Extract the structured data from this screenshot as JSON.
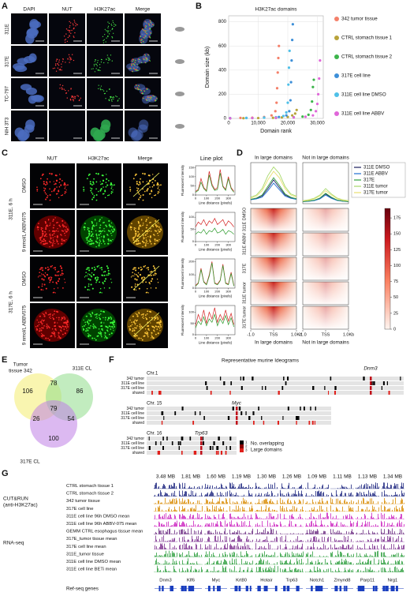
{
  "panel_labels": [
    "A",
    "B",
    "C",
    "D",
    "E",
    "F",
    "G"
  ],
  "panel_a": {
    "columns": [
      "DAPI",
      "NUT",
      "H3K27ac",
      "Merge"
    ],
    "rows": [
      "311E",
      "317E",
      "TC-797",
      "NIH 3T3"
    ]
  },
  "panel_c": {
    "columns": [
      "NUT",
      "H3K27ac",
      "Merge"
    ],
    "line_plot_title": "Line plot",
    "groups": [
      {
        "name": "311E, 6 h",
        "conditions": [
          "DMSO",
          "9 nmol/L ABBV075"
        ]
      },
      {
        "name": "317E, 6 h",
        "conditions": [
          "DMSO",
          "9 nmol/L ABBV075"
        ]
      }
    ]
  },
  "chart_data": [
    {
      "type": "scatter",
      "title": "H3K27ac domains",
      "x_label": "Domain rank",
      "y_label": "Domain size (kb)",
      "xlim": [
        0,
        32000
      ],
      "ylim": [
        0,
        850
      ],
      "xticks": [
        0,
        {
          "value": 10000,
          "label": "10,000"
        },
        {
          "value": 20000,
          "label": "20,000"
        },
        {
          "value": 30000,
          "label": "30,000"
        }
      ],
      "yticks": [
        0,
        200,
        400,
        600,
        800
      ],
      "series": [
        {
          "name": "342 tumor tissue",
          "color": "#f4806a",
          "x": [
            500,
            4000,
            8000,
            12000,
            14500,
            15800,
            16200,
            16400,
            16600,
            16800,
            17000
          ],
          "values": [
            2,
            4,
            6,
            12,
            25,
            60,
            130,
            250,
            380,
            500,
            600
          ]
        },
        {
          "name": "CTRL stomach tissue 1",
          "color": "#b8a33a",
          "x": [
            500,
            5000,
            10000,
            15000,
            18000,
            20000,
            21500,
            22500,
            23000
          ],
          "values": [
            1,
            2,
            3,
            5,
            8,
            12,
            25,
            40,
            70
          ]
        },
        {
          "name": "CTRL stomach tissue 2",
          "color": "#3cb44b",
          "x": [
            500,
            8000,
            16000,
            22000,
            25000,
            27000,
            27800,
            28200,
            28500,
            28800
          ],
          "values": [
            1,
            3,
            5,
            9,
            15,
            30,
            70,
            140,
            260,
            320
          ]
        },
        {
          "name": "317E cell line",
          "color": "#3d8fd8",
          "x": [
            500,
            6000,
            12000,
            17000,
            19500,
            20500,
            20900,
            21100,
            21300,
            21500,
            21700
          ],
          "values": [
            2,
            4,
            7,
            12,
            25,
            60,
            150,
            300,
            480,
            650,
            780
          ]
        },
        {
          "name": "311E cell line DMSO",
          "color": "#4fc0e8",
          "x": [
            500,
            6000,
            12000,
            16000,
            18500,
            19500,
            20000,
            20200,
            20400,
            20600
          ],
          "values": [
            2,
            3,
            6,
            10,
            20,
            50,
            130,
            280,
            420,
            560
          ]
        },
        {
          "name": "311E cell line ABBV",
          "color": "#e066d9",
          "x": [
            500,
            8000,
            16000,
            22000,
            26000,
            28500,
            29500,
            30000,
            30300,
            30600,
            30900
          ],
          "values": [
            1,
            3,
            5,
            8,
            14,
            25,
            60,
            120,
            200,
            330,
            480
          ]
        }
      ]
    },
    {
      "type": "line",
      "x_label": "Line distance (pixels)",
      "y_label": "Fluorescent intensity",
      "xlim": [
        0,
        360
      ],
      "xticks": [
        0,
        100,
        200,
        300
      ],
      "ylim": [
        0,
        160
      ],
      "yticks": [
        0,
        50,
        100,
        150
      ],
      "x": [
        0,
        25,
        50,
        75,
        100,
        125,
        150,
        175,
        200,
        225,
        250,
        275,
        300,
        325,
        350
      ],
      "series": [
        {
          "color": "#d42020",
          "values": [
            20,
            30,
            90,
            40,
            25,
            130,
            60,
            30,
            40,
            140,
            50,
            30,
            100,
            40,
            20
          ]
        },
        {
          "color": "#2a9a2a",
          "values": [
            15,
            25,
            70,
            35,
            20,
            110,
            50,
            25,
            30,
            120,
            45,
            25,
            90,
            35,
            15
          ]
        }
      ]
    },
    {
      "type": "line",
      "x_label": "Line distance (pixels)",
      "y_label": "Fluorescent intensity",
      "xlim": [
        0,
        360
      ],
      "xticks": [
        0,
        100,
        200,
        300
      ],
      "ylim": [
        0,
        120
      ],
      "yticks": [
        0,
        50,
        100
      ],
      "x": [
        0,
        25,
        50,
        75,
        100,
        125,
        150,
        175,
        200,
        225,
        250,
        275,
        300,
        325,
        350
      ],
      "series": [
        {
          "color": "#d42020",
          "values": [
            60,
            80,
            70,
            90,
            65,
            85,
            75,
            95,
            70,
            80,
            90,
            65,
            85,
            75,
            60
          ]
        },
        {
          "color": "#2a9a2a",
          "values": [
            30,
            40,
            35,
            50,
            30,
            45,
            40,
            55,
            35,
            40,
            50,
            30,
            45,
            40,
            30
          ]
        }
      ]
    },
    {
      "type": "line",
      "x_label": "Line distance (pixels)",
      "y_label": "Fluorescent intensity",
      "xlim": [
        0,
        360
      ],
      "xticks": [
        0,
        100,
        200,
        300
      ],
      "ylim": [
        0,
        220
      ],
      "yticks": [
        0,
        100,
        200
      ],
      "x": [
        0,
        25,
        50,
        75,
        100,
        125,
        150,
        175,
        200,
        225,
        250,
        275,
        300,
        325,
        350
      ],
      "series": [
        {
          "color": "#d42020",
          "values": [
            20,
            40,
            150,
            50,
            30,
            100,
            200,
            40,
            30,
            60,
            180,
            40,
            30,
            120,
            20
          ]
        },
        {
          "color": "#2a9a2a",
          "values": [
            15,
            35,
            140,
            45,
            25,
            90,
            190,
            35,
            25,
            55,
            170,
            35,
            25,
            110,
            15
          ]
        }
      ]
    },
    {
      "type": "line",
      "x_label": "Line distance (pixels)",
      "y_label": "Fluorescent intensity",
      "xlim": [
        0,
        360
      ],
      "xticks": [
        0,
        100,
        200,
        300
      ],
      "ylim": [
        0,
        130
      ],
      "yticks": [
        0,
        50,
        100
      ],
      "x": [
        0,
        25,
        50,
        75,
        100,
        125,
        150,
        175,
        200,
        225,
        250,
        275,
        300,
        325,
        350
      ],
      "series": [
        {
          "color": "#d42020",
          "values": [
            40,
            90,
            60,
            110,
            50,
            100,
            70,
            120,
            55,
            90,
            65,
            110,
            60,
            95,
            45
          ]
        },
        {
          "color": "#2a9a2a",
          "values": [
            30,
            60,
            45,
            80,
            40,
            70,
            55,
            90,
            40,
            70,
            50,
            85,
            45,
            75,
            35
          ]
        }
      ]
    },
    {
      "type": "profile",
      "title": "In large domains",
      "xlim": [
        -1,
        1
      ],
      "ylim": [
        0,
        190
      ],
      "xticks": [
        {
          "value": -1,
          "label": "-1.0"
        },
        {
          "value": 0,
          "label": "TSS"
        },
        {
          "value": 1,
          "label": "1.0Kb"
        }
      ],
      "x": [
        -1,
        -0.75,
        -0.5,
        -0.25,
        0,
        0.25,
        0.5,
        0.75,
        1
      ],
      "series": [
        {
          "name": "311E DMSO",
          "color": "#1a1f5e",
          "values": [
            20,
            25,
            35,
            70,
            110,
            75,
            40,
            28,
            22
          ]
        },
        {
          "name": "311E ABBV",
          "color": "#1e6fd0",
          "values": [
            18,
            22,
            30,
            60,
            95,
            65,
            35,
            25,
            20
          ]
        },
        {
          "name": "317E",
          "color": "#2e9e3e",
          "values": [
            20,
            26,
            40,
            80,
            120,
            85,
            45,
            30,
            22
          ]
        },
        {
          "name": "311E tumor",
          "color": "#a6d96a",
          "values": [
            30,
            40,
            70,
            130,
            170,
            140,
            80,
            45,
            35
          ]
        },
        {
          "name": "317E tumor",
          "color": "#e8e070",
          "values": [
            25,
            35,
            60,
            110,
            150,
            120,
            70,
            40,
            30
          ]
        }
      ]
    },
    {
      "type": "profile",
      "title": "Not in large domains",
      "xlim": [
        -1,
        1
      ],
      "ylim": [
        0,
        190
      ],
      "xticks": [
        {
          "value": -1,
          "label": "-1.0"
        },
        {
          "value": 0,
          "label": "TSS"
        },
        {
          "value": 1,
          "label": "1.0Kb"
        }
      ],
      "x": [
        -1,
        -0.75,
        -0.5,
        -0.25,
        0,
        0.25,
        0.5,
        0.75,
        1
      ],
      "series": [
        {
          "color": "#1a1f5e",
          "values": [
            10,
            12,
            15,
            25,
            45,
            28,
            16,
            12,
            10
          ]
        },
        {
          "color": "#1e6fd0",
          "values": [
            9,
            11,
            14,
            22,
            40,
            25,
            15,
            11,
            9
          ]
        },
        {
          "color": "#2e9e3e",
          "values": [
            10,
            12,
            16,
            26,
            48,
            30,
            17,
            12,
            10
          ]
        },
        {
          "color": "#a6d96a",
          "values": [
            14,
            18,
            25,
            40,
            70,
            45,
            26,
            18,
            14
          ]
        },
        {
          "color": "#e8e070",
          "values": [
            12,
            16,
            22,
            35,
            60,
            40,
            23,
            16,
            12
          ]
        }
      ]
    }
  ],
  "heatmap": {
    "row_labels": [
      "311E DMSO",
      "311E ABBV",
      "317E",
      "311E tumor",
      "317E tumor"
    ],
    "column_labels": [
      "In large domains",
      "Not in large domains"
    ],
    "colorbar": {
      "lim": [
        0,
        190
      ],
      "ticks": [
        0,
        25,
        50,
        75,
        100,
        125,
        150,
        175
      ]
    }
  },
  "venn": {
    "sets": [
      {
        "lines": [
          "Tumor",
          "tissue 342"
        ]
      },
      {
        "lines": [
          "311E CL"
        ]
      },
      {
        "lines": [
          "317E CL"
        ]
      }
    ],
    "regions": [
      106,
      78,
      86,
      26,
      79,
      54,
      100
    ]
  },
  "ideograms": {
    "title": "Representative murine Ideograms",
    "chromosomes": [
      {
        "name": "Chr.1",
        "gene": "Dnm3",
        "tracks": [
          "342 tumor",
          "311E cell line",
          "317E cell line",
          "shared"
        ]
      },
      {
        "name": "Chr. 15",
        "gene": "Myc",
        "tracks": [
          "342 tumor",
          "311E cell line",
          "317E cell line",
          "shared"
        ]
      },
      {
        "name": "Chr. 16",
        "gene": "Trp63",
        "tracks": [
          "342 tumor",
          "311E cell line",
          "317E cell line",
          "shared"
        ]
      }
    ],
    "legend": {
      "title_lines": [
        "No. overlapping",
        "Large domains"
      ],
      "levels": [
        1,
        2,
        3
      ],
      "colors": [
        "#000000",
        "#8b0000",
        "#e0201b"
      ]
    }
  },
  "browser": {
    "cut_and_run_label": [
      "CUT&RUN",
      "(anti-H3K27ac)"
    ],
    "rnaseq_label": "RNA-seq",
    "refseq_label": "Ref-seq genes",
    "tracks": [
      {
        "name": "CTRL stomach tissue 1",
        "color": "#1a237e"
      },
      {
        "name": "CTRL stomach tissue 2",
        "color": "#1a237e"
      },
      {
        "name": "342 tumor tissue",
        "color": "#d98a00"
      },
      {
        "name": "317E cell line",
        "color": "#d98a00"
      },
      {
        "name": "311E cell line 96h DMSO mean",
        "color": "#cc22c0"
      },
      {
        "name": "311E cell line 96h ABBV-075 mean",
        "color": "#cc22c0"
      },
      {
        "name": "GEMM CTRL esophagus tissue mean",
        "color": "#6a2a80"
      },
      {
        "name": "317E_tumor tissue mean",
        "color": "#7b2d8e"
      },
      {
        "name": "317E cell line mean",
        "color": "#7b2d8e"
      },
      {
        "name": "311E_tumor tissue",
        "color": "#2e9e3e"
      },
      {
        "name": "311E cell line DMSO mean",
        "color": "#2e9e3e"
      },
      {
        "name": "311E cell line BETi mean",
        "color": "#2e9e3e"
      }
    ],
    "regions": [
      {
        "size": "3.48 MB",
        "gene": "Dnm3"
      },
      {
        "size": "1.81 MB",
        "gene": "Klf6"
      },
      {
        "size": "1.60 MB",
        "gene": "Myc"
      },
      {
        "size": "1.19 MB",
        "gene": "Krt80"
      },
      {
        "size": "1.30 MB",
        "gene": "Hotair"
      },
      {
        "size": "1.26 MB",
        "gene": "Trp63"
      },
      {
        "size": "1.09 MB",
        "gene": "Notch1"
      },
      {
        "size": "1.11 MB",
        "gene": "Zmynd8"
      },
      {
        "size": "1.13 MB",
        "gene": "Parp11"
      },
      {
        "size": "1.34 MB",
        "gene": "Nrg1"
      }
    ]
  }
}
